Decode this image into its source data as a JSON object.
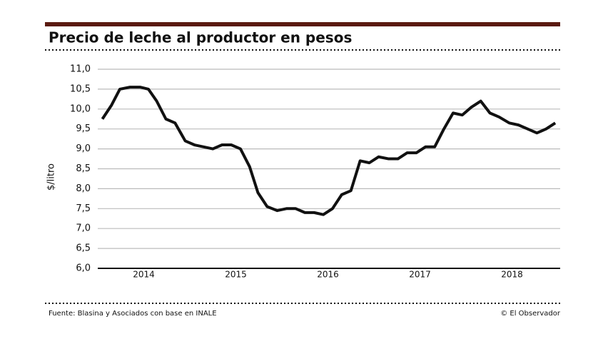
{
  "chart_data": {
    "type": "line",
    "title": "Precio de leche al productor en pesos",
    "y_label": "$/litro",
    "source": "Fuente: Blasina y Asociados con base en INALE",
    "credit": "© El Observador",
    "x": [
      2014.05,
      2014.15,
      2014.24,
      2014.35,
      2014.46,
      2014.55,
      2014.64,
      2014.74,
      2014.84,
      2014.95,
      2015.05,
      2015.15,
      2015.25,
      2015.35,
      2015.45,
      2015.55,
      2015.65,
      2015.74,
      2015.84,
      2015.95,
      2016.05,
      2016.15,
      2016.25,
      2016.35,
      2016.45,
      2016.55,
      2016.65,
      2016.75,
      2016.85,
      2016.95,
      2017.05,
      2017.16,
      2017.26,
      2017.36,
      2017.46,
      2017.56,
      2017.66,
      2017.76,
      2017.86,
      2017.96,
      2018.06,
      2018.16,
      2018.26,
      2018.36,
      2018.47,
      2018.57,
      2018.67,
      2018.77,
      2018.87,
      2018.97
    ],
    "series": [
      {
        "color": "#111111",
        "values": [
          9.75,
          10.1,
          10.5,
          10.55,
          10.55,
          10.5,
          10.2,
          9.75,
          9.65,
          9.2,
          9.1,
          9.05,
          9.0,
          9.1,
          9.1,
          9.0,
          8.55,
          7.9,
          7.55,
          7.45,
          7.5,
          7.5,
          7.4,
          7.4,
          7.35,
          7.5,
          7.85,
          7.95,
          8.7,
          8.65,
          8.8,
          8.75,
          8.75,
          8.9,
          8.9,
          9.05,
          9.05,
          9.5,
          9.9,
          9.85,
          10.05,
          10.2,
          9.9,
          9.8,
          9.65,
          9.6,
          9.5,
          9.4,
          9.5,
          9.65
        ]
      }
    ],
    "xlim": [
      2014.0,
      2019.0
    ],
    "xticks": [
      {
        "value": 2014.5,
        "label": "2014"
      },
      {
        "value": 2015.5,
        "label": "2015"
      },
      {
        "value": 2016.5,
        "label": "2016"
      },
      {
        "value": 2017.5,
        "label": "2017"
      },
      {
        "value": 2018.5,
        "label": "2018"
      }
    ],
    "ylim": [
      6,
      11
    ],
    "yticks": [
      {
        "value": 6,
        "label": "6,0"
      },
      {
        "value": 6.5,
        "label": "6,5"
      },
      {
        "value": 7,
        "label": "7,0"
      },
      {
        "value": 7.5,
        "label": "7,5"
      },
      {
        "value": 8,
        "label": "8,0"
      },
      {
        "value": 8.5,
        "label": "8,5"
      },
      {
        "value": 9,
        "label": "9,0"
      },
      {
        "value": 9.5,
        "label": "9,5"
      },
      {
        "value": 10,
        "label": "10,0"
      },
      {
        "value": 10.5,
        "label": "10,5"
      },
      {
        "value": 11,
        "label": "11,0"
      }
    ],
    "grid": true
  }
}
